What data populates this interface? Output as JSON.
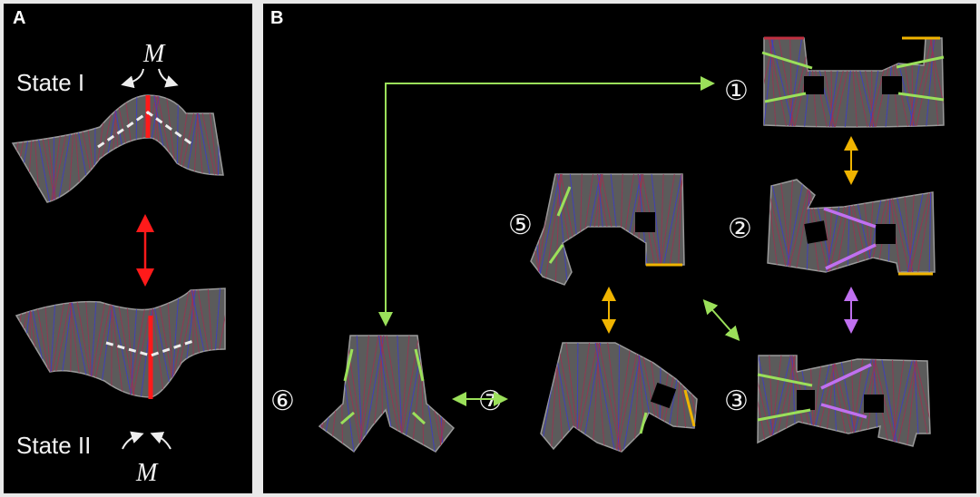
{
  "panel_a": {
    "label": "A",
    "state_1": "State I",
    "state_2": "State II",
    "moment_top": "M",
    "moment_bottom": "M"
  },
  "panel_b": {
    "label": "B",
    "states": [
      "①",
      "②",
      "③",
      "⑤",
      "⑥",
      "⑦"
    ]
  },
  "colors": {
    "background": "#000000",
    "frame": "#e9e9e9",
    "hinge_red": "#ff1a1a",
    "green": "#9be05a",
    "yellow": "#f0b400",
    "purple": "#c070f0",
    "fold_blue": "#3b3bd0",
    "fold_red": "#a03050"
  }
}
